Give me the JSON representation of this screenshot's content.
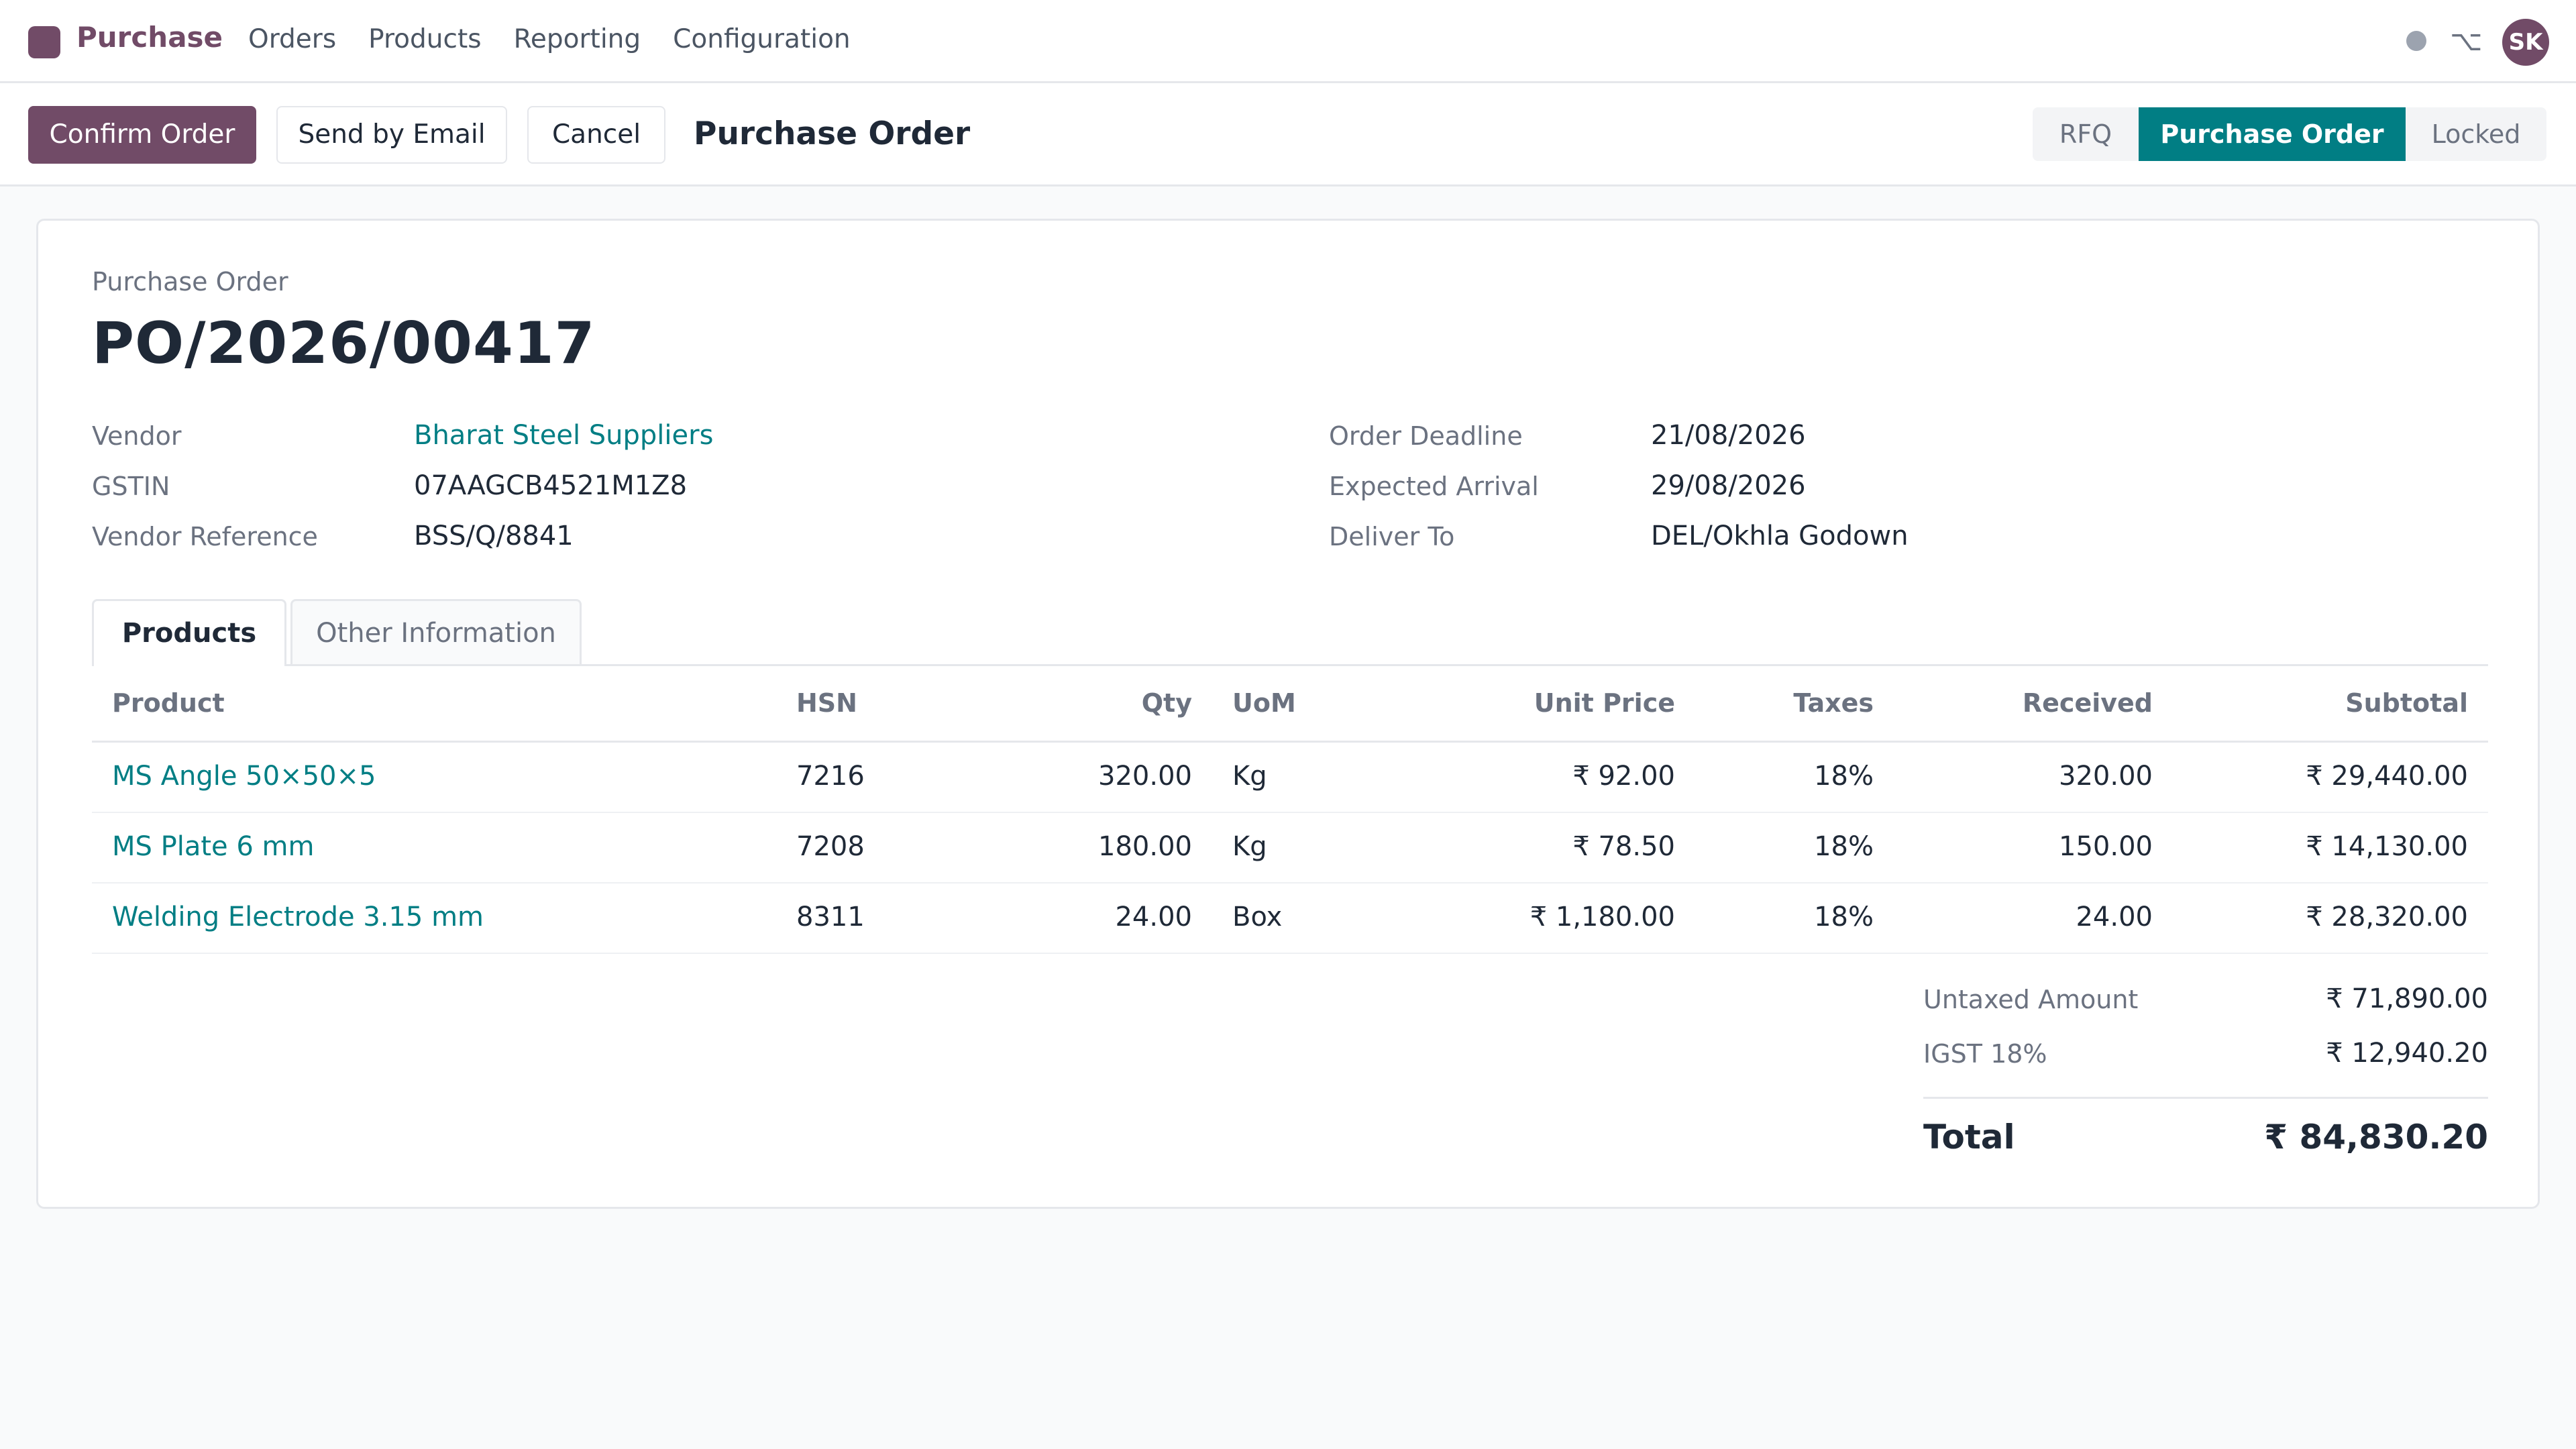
{
  "app": {
    "name": "Purchase",
    "menu": [
      "Orders",
      "Products",
      "Reporting",
      "Configuration"
    ],
    "user_initials": "SK",
    "option_glyph": "⌥",
    "accent_color": "#714b67",
    "status_color": "#017e84"
  },
  "controls": {
    "confirm": "Confirm Order",
    "send_email": "Send by Email",
    "cancel": "Cancel",
    "breadcrumb": "Purchase Order"
  },
  "status_stages": [
    {
      "label": "RFQ",
      "active": false
    },
    {
      "label": "Purchase Order",
      "active": true
    },
    {
      "label": "Locked",
      "active": false
    }
  ],
  "record": {
    "type_label": "Purchase Order",
    "name": "PO/2026/00417",
    "left_fields": [
      {
        "label": "Vendor",
        "value": "Bharat Steel Suppliers",
        "link": true
      },
      {
        "label": "GSTIN",
        "value": "07AAGCB4521M1Z8",
        "link": false
      },
      {
        "label": "Vendor Reference",
        "value": "BSS/Q/8841",
        "link": false
      }
    ],
    "right_fields": [
      {
        "label": "Order Deadline",
        "value": "21/08/2026"
      },
      {
        "label": "Expected Arrival",
        "value": "29/08/2026"
      },
      {
        "label": "Deliver To",
        "value": "DEL/Okhla Godown"
      }
    ]
  },
  "tabs": [
    {
      "label": "Products",
      "active": true
    },
    {
      "label": "Other Information",
      "active": false
    }
  ],
  "table": {
    "headers": [
      "Product",
      "HSN",
      "Qty",
      "UoM",
      "Unit Price",
      "Taxes",
      "Received",
      "Subtotal"
    ],
    "rows": [
      {
        "product": "MS Angle 50×50×5",
        "hsn": "7216",
        "qty": "320.00",
        "uom": "Kg",
        "unit_price": "₹ 92.00",
        "taxes": "18%",
        "received": "320.00",
        "subtotal": "₹ 29,440.00"
      },
      {
        "product": "MS Plate 6 mm",
        "hsn": "7208",
        "qty": "180.00",
        "uom": "Kg",
        "unit_price": "₹ 78.50",
        "taxes": "18%",
        "received": "150.00",
        "subtotal": "₹ 14,130.00"
      },
      {
        "product": "Welding Electrode 3.15 mm",
        "hsn": "8311",
        "qty": "24.00",
        "uom": "Box",
        "unit_price": "₹ 1,180.00",
        "taxes": "18%",
        "received": "24.00",
        "subtotal": "₹ 28,320.00"
      }
    ]
  },
  "totals": {
    "untaxed_label": "Untaxed Amount",
    "untaxed_value": "₹ 71,890.00",
    "tax_label": "IGST 18%",
    "tax_value": "₹ 12,940.20",
    "total_label": "Total",
    "total_value": "₹ 84,830.20"
  }
}
